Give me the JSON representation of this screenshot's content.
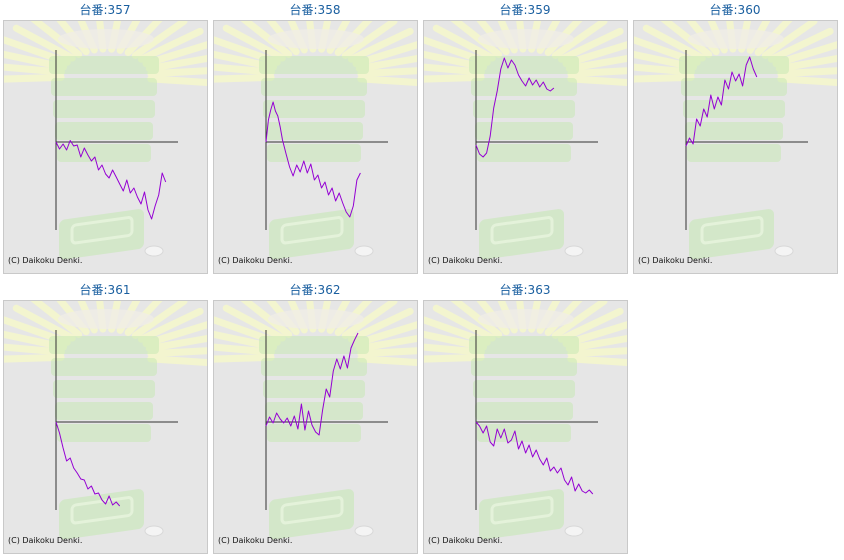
{
  "chart_data": [
    {
      "type": "line",
      "title": "台番:357",
      "x": [
        0,
        3,
        6,
        9,
        12,
        15,
        18,
        21,
        24,
        27,
        30,
        33,
        36,
        39,
        42,
        45,
        48,
        51,
        54,
        57,
        60,
        63,
        66,
        69,
        72,
        75,
        78,
        81,
        84,
        87,
        90,
        93
      ],
      "y": [
        0,
        -700,
        -200,
        -800,
        150,
        -400,
        -300,
        -1500,
        -600,
        -1300,
        -1900,
        -1500,
        -2800,
        -2300,
        -3200,
        -3600,
        -2800,
        -3500,
        -4200,
        -4900,
        -3800,
        -5100,
        -4600,
        -5500,
        -6200,
        -5000,
        -6800,
        -7700,
        -6400,
        -5300,
        -3100,
        -4000
      ],
      "ylim": [
        -8500,
        8500
      ],
      "xlim": [
        0,
        100
      ]
    },
    {
      "type": "line",
      "title": "台番:358",
      "x": [
        0,
        2,
        4,
        6,
        8,
        10,
        12,
        14,
        17,
        20,
        23,
        26,
        29,
        32,
        35,
        38,
        41,
        44,
        47,
        50,
        53,
        56,
        59,
        62,
        65,
        68,
        71,
        74,
        77,
        80
      ],
      "y": [
        0,
        2200,
        3200,
        4000,
        3100,
        2600,
        1500,
        200,
        -1200,
        -2500,
        -3400,
        -2300,
        -3000,
        -1900,
        -3100,
        -2200,
        -3800,
        -3300,
        -4600,
        -4000,
        -5300,
        -4600,
        -5900,
        -5100,
        -6100,
        -7000,
        -7500,
        -6400,
        -3800,
        -3100
      ],
      "ylim": [
        -8500,
        8500
      ],
      "xlim": [
        0,
        100
      ]
    },
    {
      "type": "line",
      "title": "台番:359",
      "x": [
        0,
        3,
        6,
        9,
        12,
        15,
        18,
        21,
        24,
        27,
        30,
        33,
        36,
        39,
        42,
        45,
        48,
        51,
        54,
        57,
        60,
        63,
        66
      ],
      "y": [
        -300,
        -1200,
        -1500,
        -1100,
        600,
        3400,
        5100,
        7300,
        8400,
        7400,
        8200,
        7700,
        6700,
        6100,
        5600,
        6400,
        5700,
        6200,
        5500,
        6000,
        5300,
        5100,
        5400
      ],
      "ylim": [
        -8500,
        8500
      ],
      "xlim": [
        0,
        100
      ]
    },
    {
      "type": "line",
      "title": "台番:360",
      "x": [
        0,
        3,
        6,
        9,
        12,
        15,
        18,
        21,
        24,
        27,
        30,
        33,
        36,
        39,
        42,
        45,
        48,
        51,
        54,
        57,
        60
      ],
      "y": [
        -400,
        400,
        -200,
        2300,
        1600,
        3300,
        2500,
        4700,
        3300,
        4500,
        3700,
        6200,
        5300,
        7000,
        6100,
        6800,
        5600,
        7700,
        8500,
        7300,
        6500
      ],
      "ylim": [
        -8500,
        8500
      ],
      "xlim": [
        0,
        100
      ]
    },
    {
      "type": "line",
      "title": "台番:361",
      "x": [
        0,
        3,
        6,
        9,
        12,
        15,
        18,
        21,
        24,
        27,
        30,
        33,
        36,
        39,
        42,
        45,
        48,
        51,
        54
      ],
      "y": [
        0,
        -1100,
        -2600,
        -3900,
        -3600,
        -4600,
        -5100,
        -5700,
        -5800,
        -6700,
        -6400,
        -7200,
        -7100,
        -7800,
        -8200,
        -7400,
        -8300,
        -8000,
        -8400
      ],
      "ylim": [
        -8500,
        8500
      ],
      "xlim": [
        0,
        100
      ]
    },
    {
      "type": "line",
      "title": "台番:362",
      "x": [
        0,
        3,
        6,
        9,
        12,
        15,
        18,
        21,
        24,
        27,
        30,
        33,
        36,
        39,
        42,
        45,
        48,
        51,
        54,
        57,
        60,
        63,
        66,
        69,
        72,
        75,
        78
      ],
      "y": [
        -400,
        500,
        -100,
        900,
        300,
        -100,
        400,
        -400,
        600,
        -700,
        1800,
        -800,
        1100,
        -300,
        -1000,
        -1300,
        1200,
        3300,
        2500,
        5100,
        6300,
        5300,
        6600,
        5400,
        7400,
        8200,
        8900
      ],
      "ylim": [
        -8500,
        8500
      ],
      "xlim": [
        0,
        100
      ]
    },
    {
      "type": "line",
      "title": "台番:363",
      "x": [
        0,
        3,
        6,
        9,
        12,
        15,
        18,
        21,
        24,
        27,
        30,
        33,
        36,
        39,
        42,
        45,
        48,
        51,
        54,
        57,
        60,
        63,
        66,
        69,
        72,
        75,
        78,
        81,
        84,
        87,
        90,
        93,
        96,
        99
      ],
      "y": [
        0,
        -400,
        -1100,
        -400,
        -2000,
        -2400,
        -700,
        -1600,
        -700,
        -2100,
        -1800,
        -900,
        -2700,
        -1900,
        -3100,
        -2300,
        -3500,
        -2800,
        -3700,
        -4300,
        -3600,
        -4900,
        -4500,
        -5100,
        -4600,
        -5800,
        -6300,
        -5500,
        -6900,
        -6200,
        -6900,
        -7100,
        -6800,
        -7200
      ],
      "ylim": [
        -8500,
        8500
      ],
      "xlim": [
        0,
        100
      ]
    }
  ],
  "copyright": "(C) Daikoku Denki.",
  "colors": {
    "title": "#1a5fa0",
    "line": "#9400d3",
    "axis": "#333333",
    "panel_bg": "#e6e6e6",
    "watermark_green": "#c6e7b5",
    "watermark_rays": "#f3f5cf"
  }
}
